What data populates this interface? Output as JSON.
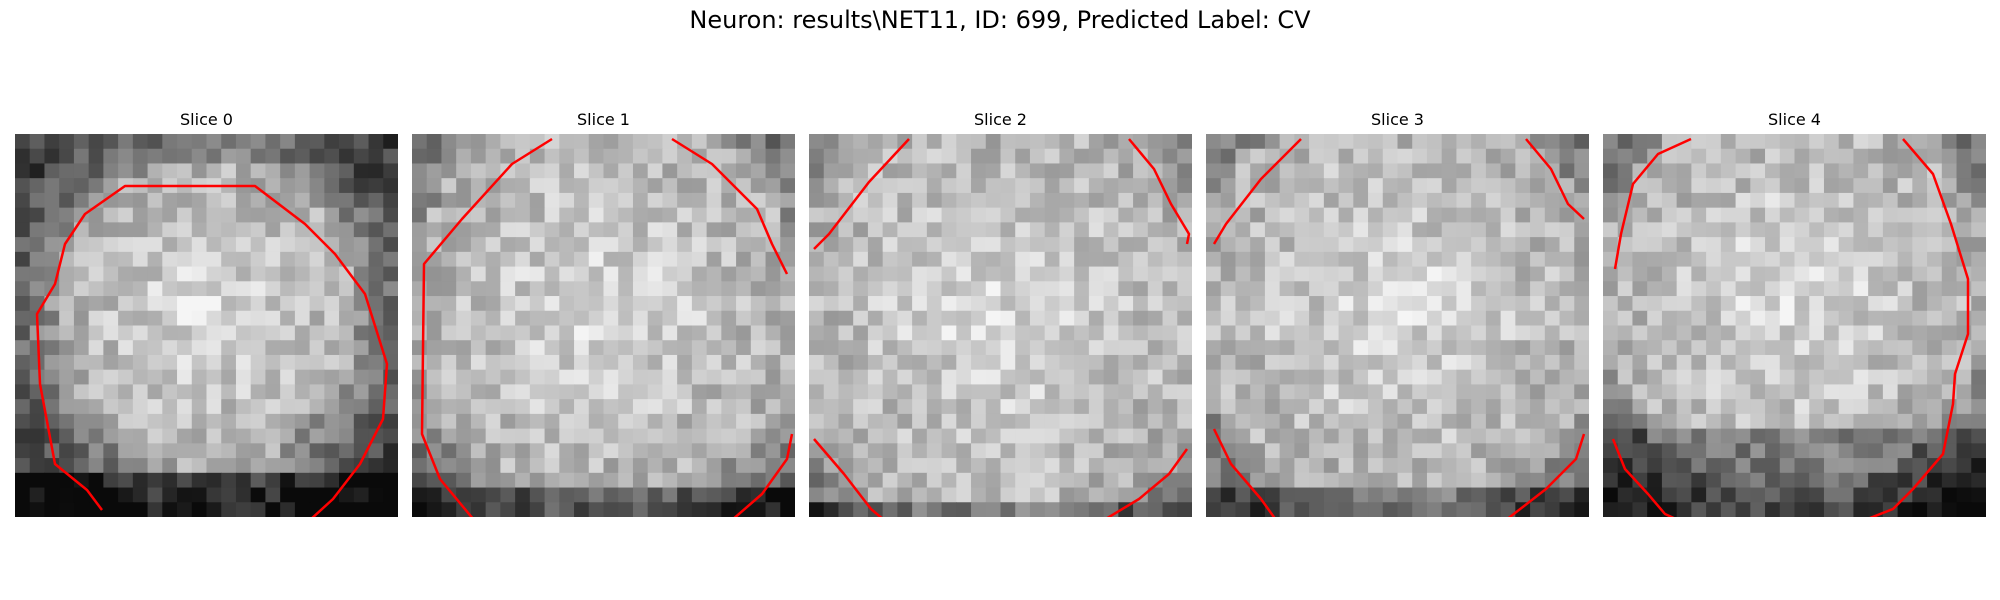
{
  "figure": {
    "title": "Neuron: results\\NET11, ID: 699, Predicted Label: CV"
  },
  "slices": [
    {
      "title": "Slice 0"
    },
    {
      "title": "Slice 1"
    },
    {
      "title": "Slice 2"
    },
    {
      "title": "Slice 3"
    },
    {
      "title": "Slice 4"
    }
  ],
  "colors": {
    "contour": "#ff0000",
    "background": "#ffffff"
  }
}
